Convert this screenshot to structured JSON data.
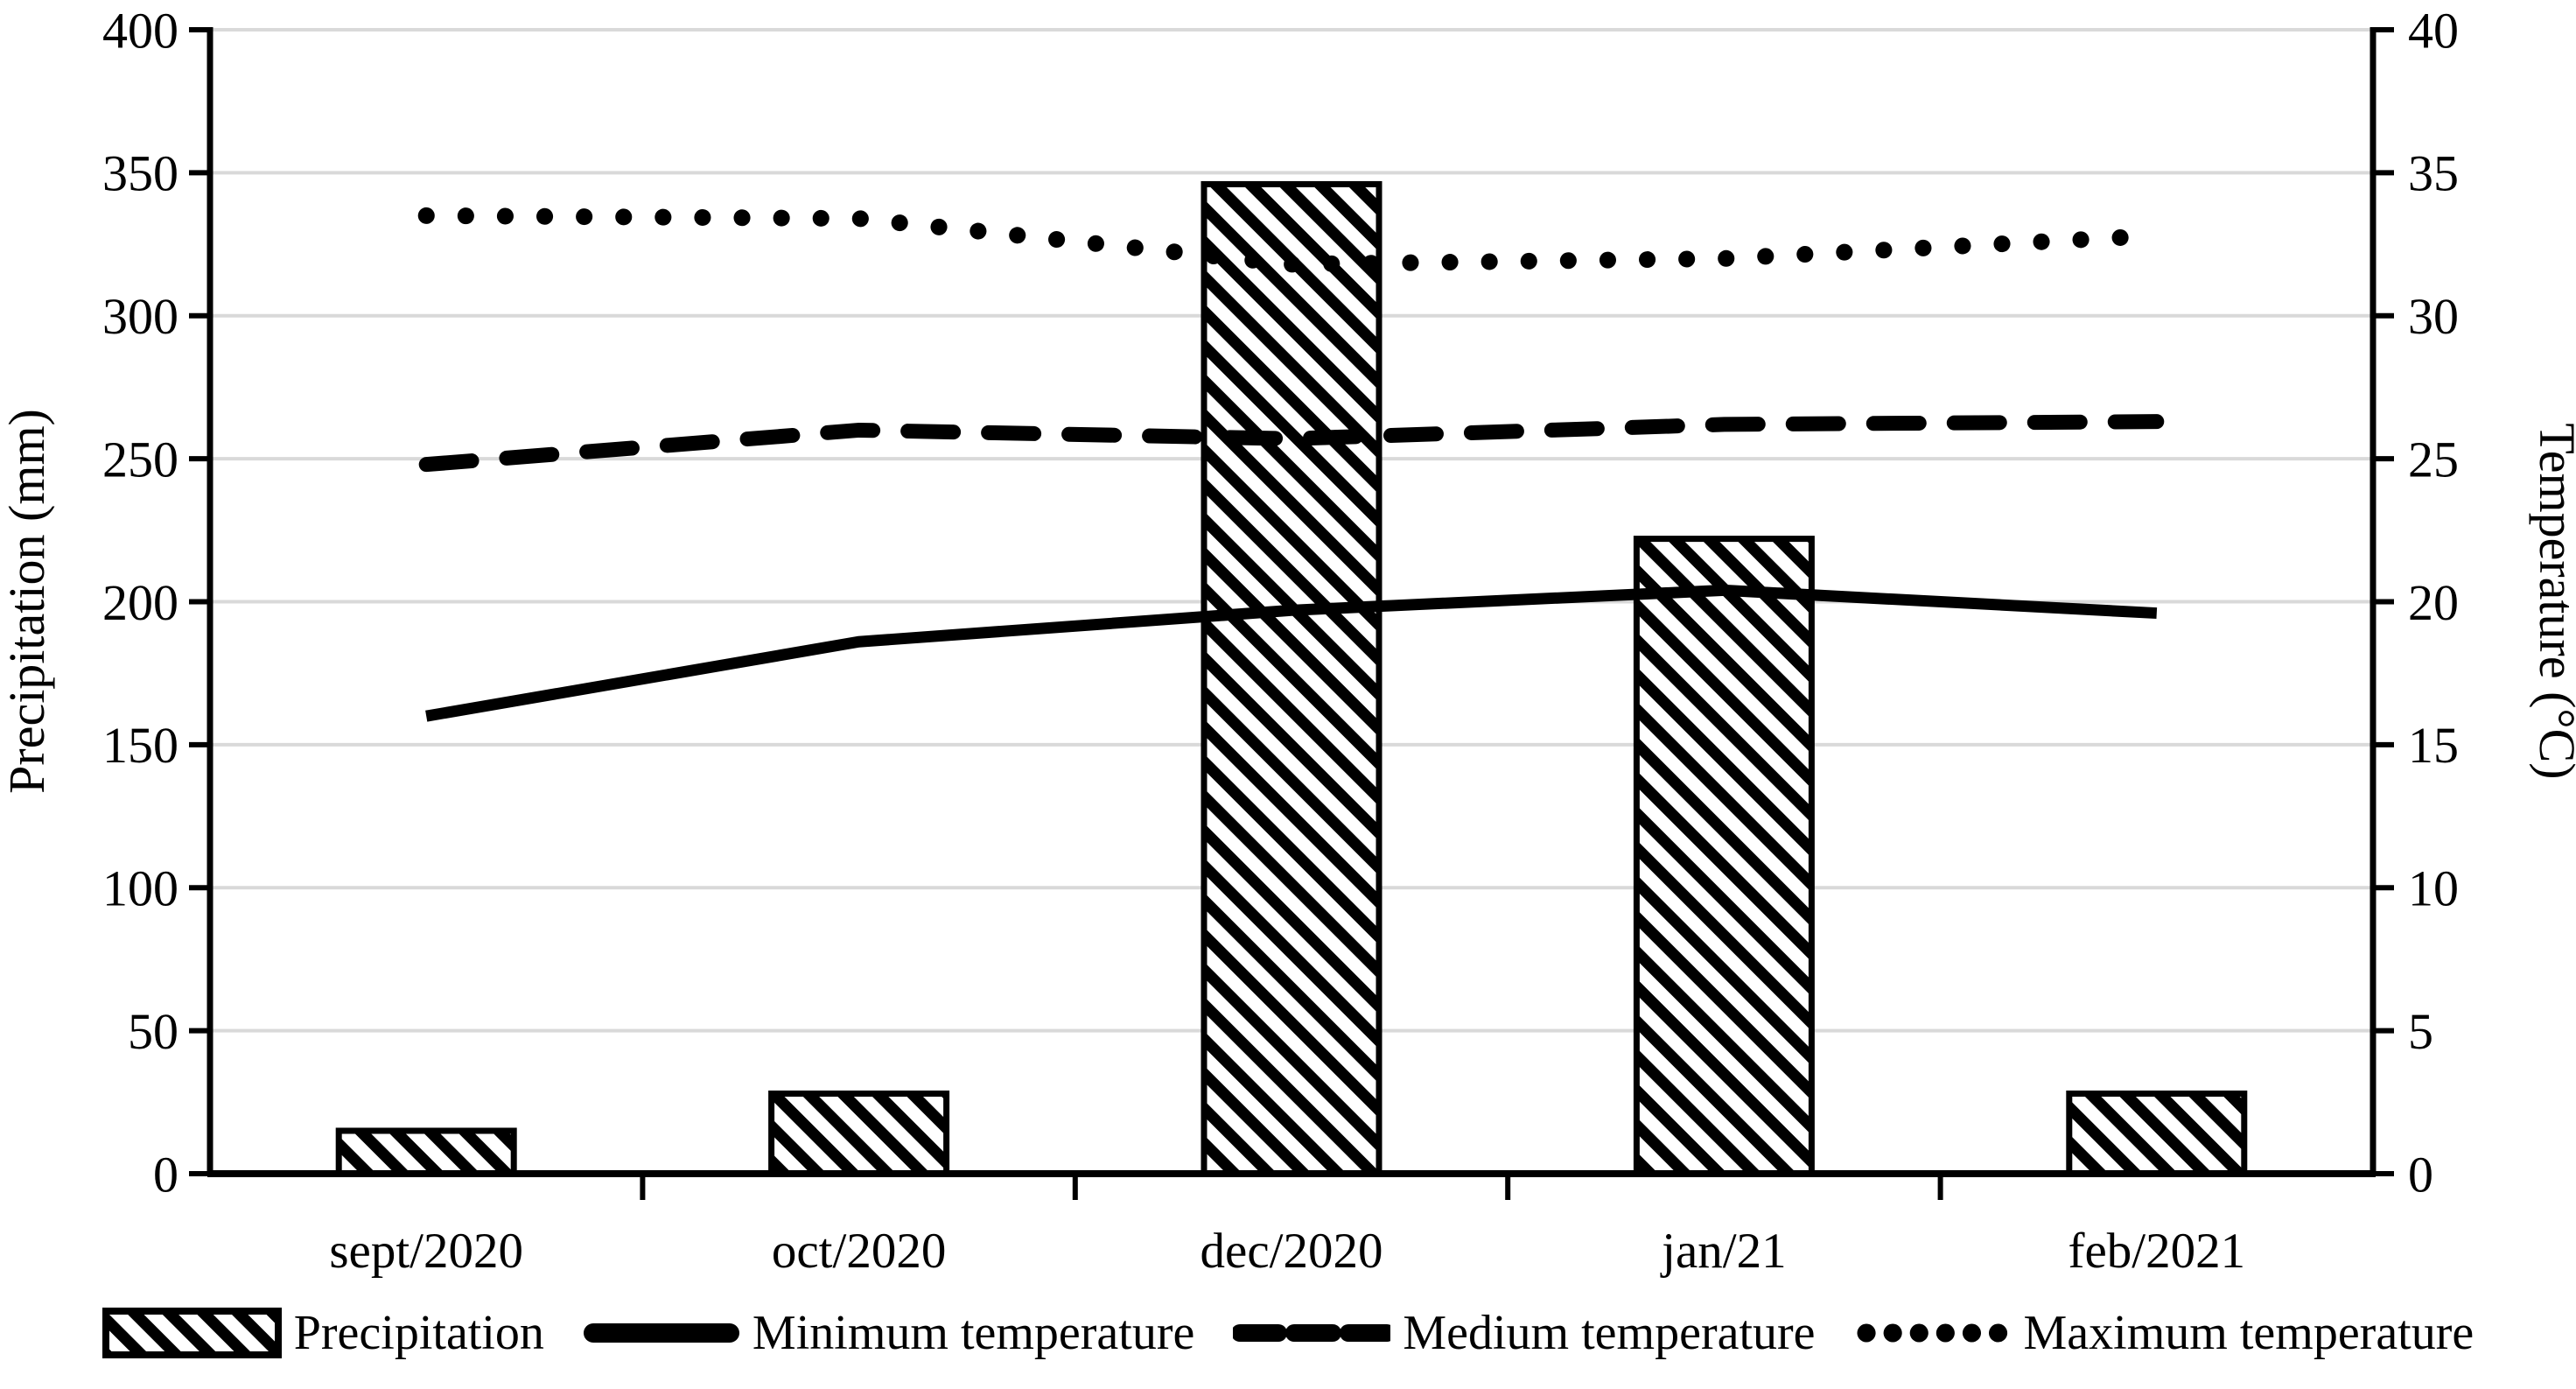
{
  "chart_data": {
    "type": "combo-bar-line",
    "categories": [
      "sept/2020",
      "oct/2020",
      "dec/2020",
      "jan/21",
      "feb/2021"
    ],
    "series": [
      {
        "name": "Precipitation",
        "type": "bar",
        "axis": "left",
        "unit": "mm",
        "style": "hatched",
        "values": [
          15,
          28,
          346,
          222,
          28
        ]
      },
      {
        "name": "Minimum temperature",
        "type": "line",
        "axis": "right",
        "unit": "°C",
        "style": "solid",
        "values": [
          16.0,
          18.6,
          19.7,
          20.4,
          19.6
        ]
      },
      {
        "name": "Medium temperature",
        "type": "line",
        "axis": "right",
        "unit": "°C",
        "style": "dashed",
        "values": [
          24.8,
          26.0,
          25.7,
          26.2,
          26.3
        ]
      },
      {
        "name": "Maximum temperature",
        "type": "line",
        "axis": "right",
        "unit": "°C",
        "style": "dotted",
        "values": [
          33.5,
          33.4,
          31.8,
          32.0,
          32.8
        ]
      }
    ],
    "y_left": {
      "label": "Precipitation (mm)",
      "min": 0,
      "max": 400,
      "step": 50,
      "ticks": [
        "0",
        "50",
        "100",
        "150",
        "200",
        "250",
        "300",
        "350",
        "400"
      ]
    },
    "y_right": {
      "label": "Temperature (°C)",
      "min": 0,
      "max": 40,
      "step": 5,
      "ticks": [
        "0",
        "5",
        "10",
        "15",
        "20",
        "25",
        "30",
        "35",
        "40"
      ]
    },
    "grid": true,
    "legend_position": "bottom",
    "colors": {
      "series": "#000000",
      "grid": "#d9d9d9",
      "background": "#ffffff"
    }
  }
}
